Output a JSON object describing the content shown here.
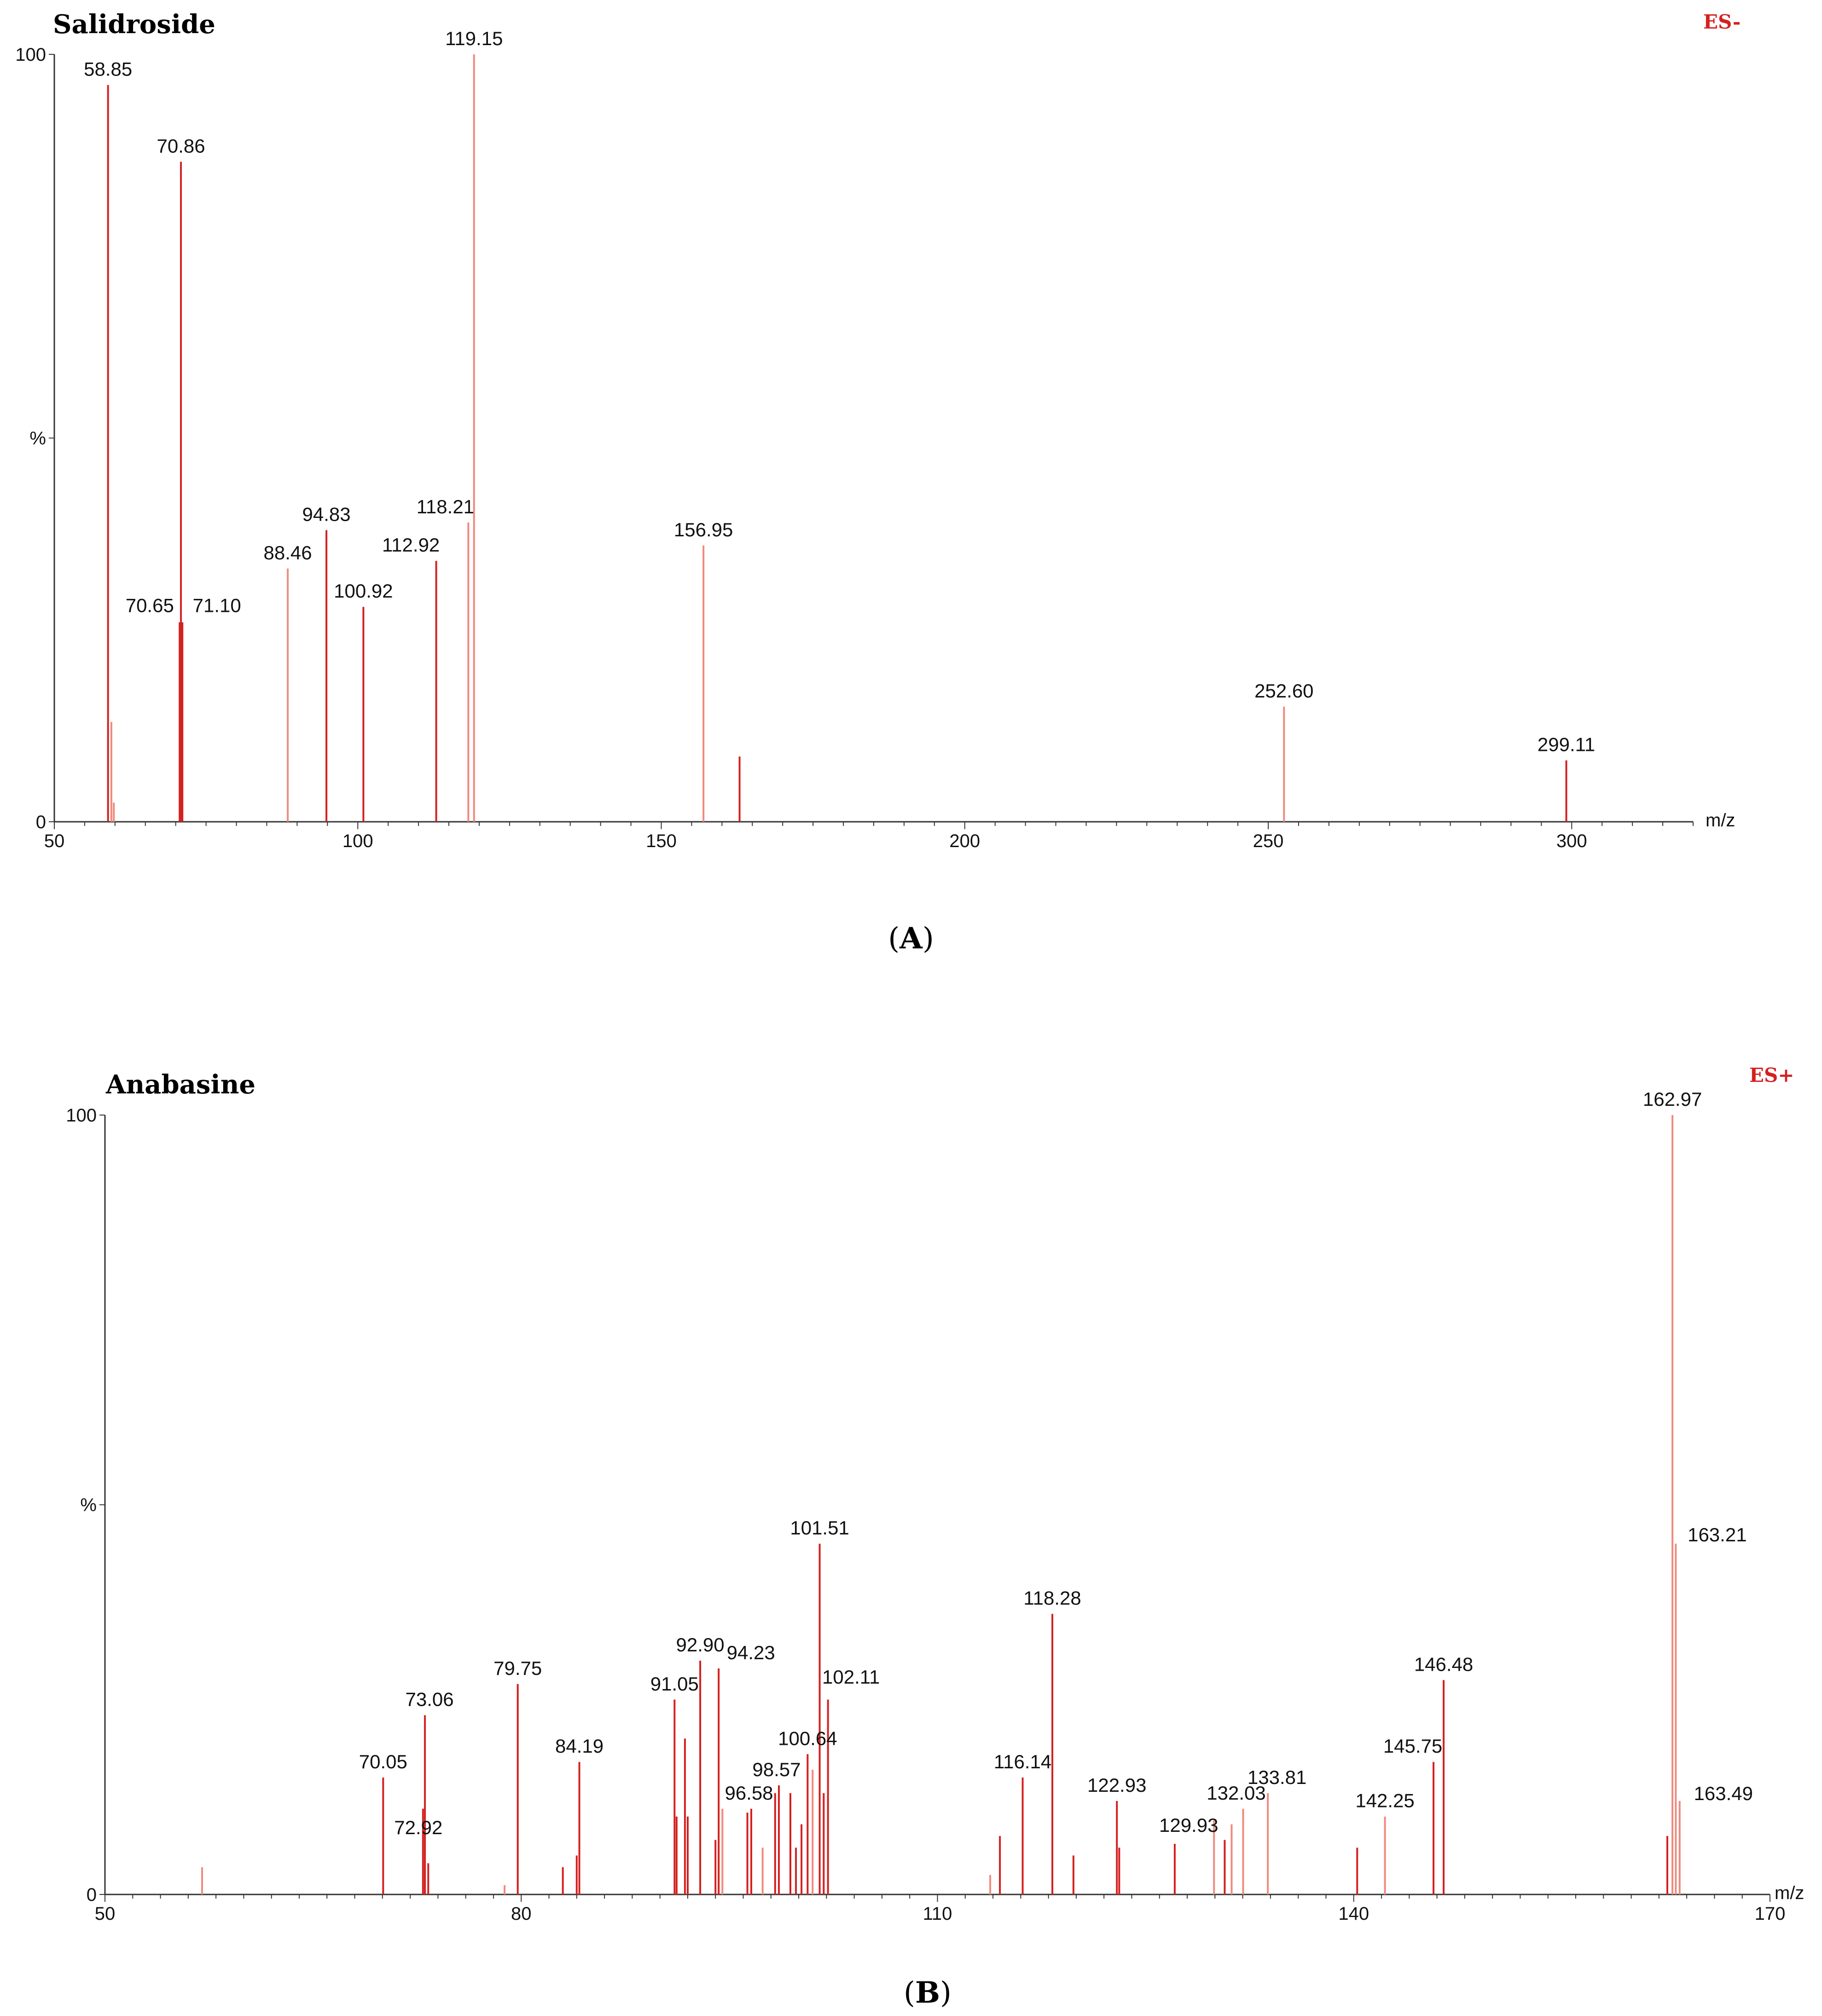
{
  "colors": {
    "strong": "#d42020",
    "light": "#f08a7e",
    "axis": "#333333",
    "ion_mode": "#d42020"
  },
  "chart_data": [
    {
      "type": "bar",
      "title": "Salidroside",
      "ion_mode": "ES-",
      "xlabel": "m/z",
      "ylabel": "%",
      "panel_label": "A",
      "xlim": [
        50,
        320
      ],
      "ylim": [
        0,
        100
      ],
      "xticks": [
        50,
        100,
        150,
        200,
        250,
        300
      ],
      "yticks": [
        {
          "value": 100,
          "label": "100"
        },
        {
          "value": 50,
          "label": "%"
        },
        {
          "value": 0,
          "label": "0"
        }
      ],
      "peaks": [
        {
          "mz": 58.85,
          "intensity": 96,
          "label": "58.85",
          "tone": "strong"
        },
        {
          "mz": 59.4,
          "intensity": 13,
          "label": null,
          "tone": "light"
        },
        {
          "mz": 59.8,
          "intensity": 2.5,
          "label": null,
          "tone": "light"
        },
        {
          "mz": 70.65,
          "intensity": 26,
          "label": "70.65",
          "tone": "strong"
        },
        {
          "mz": 70.86,
          "intensity": 86,
          "label": "70.86",
          "tone": "strong"
        },
        {
          "mz": 71.1,
          "intensity": 26,
          "label": "71.10",
          "tone": "strong"
        },
        {
          "mz": 88.46,
          "intensity": 33,
          "label": "88.46",
          "tone": "light"
        },
        {
          "mz": 94.83,
          "intensity": 38,
          "label": "94.83",
          "tone": "strong"
        },
        {
          "mz": 100.92,
          "intensity": 28,
          "label": "100.92",
          "tone": "strong"
        },
        {
          "mz": 112.92,
          "intensity": 34,
          "label": "112.92",
          "tone": "strong"
        },
        {
          "mz": 118.21,
          "intensity": 39,
          "label": "118.21",
          "tone": "light"
        },
        {
          "mz": 119.15,
          "intensity": 100,
          "label": "119.15",
          "tone": "light"
        },
        {
          "mz": 156.95,
          "intensity": 36,
          "label": "156.95",
          "tone": "light"
        },
        {
          "mz": 162.9,
          "intensity": 8.5,
          "label": null,
          "tone": "strong"
        },
        {
          "mz": 252.6,
          "intensity": 15,
          "label": "252.60",
          "tone": "light"
        },
        {
          "mz": 299.11,
          "intensity": 8,
          "label": "299.11",
          "tone": "strong"
        }
      ]
    },
    {
      "type": "bar",
      "title": "Anabasine",
      "ion_mode": "ES+",
      "xlabel": "m/z",
      "ylabel": "%",
      "panel_label": "B",
      "xlim": [
        50,
        170
      ],
      "ylim": [
        0,
        100
      ],
      "xticks": [
        50,
        80,
        110,
        140,
        170
      ],
      "yticks": [
        {
          "value": 100,
          "label": "100"
        },
        {
          "value": 50,
          "label": "%"
        },
        {
          "value": 0,
          "label": "0"
        }
      ],
      "peaks": [
        {
          "mz": 57.0,
          "intensity": 3.5,
          "label": null,
          "tone": "light"
        },
        {
          "mz": 70.05,
          "intensity": 15,
          "label": "70.05",
          "tone": "strong"
        },
        {
          "mz": 72.92,
          "intensity": 11,
          "label": "72.92",
          "tone": "strong"
        },
        {
          "mz": 73.06,
          "intensity": 23,
          "label": "73.06",
          "tone": "strong"
        },
        {
          "mz": 73.3,
          "intensity": 4,
          "label": null,
          "tone": "strong"
        },
        {
          "mz": 78.8,
          "intensity": 1.2,
          "label": null,
          "tone": "light"
        },
        {
          "mz": 79.75,
          "intensity": 27,
          "label": "79.75",
          "tone": "strong"
        },
        {
          "mz": 83.0,
          "intensity": 3.5,
          "label": null,
          "tone": "strong"
        },
        {
          "mz": 84.0,
          "intensity": 5,
          "label": null,
          "tone": "strong"
        },
        {
          "mz": 84.19,
          "intensity": 17,
          "label": "84.19",
          "tone": "strong"
        },
        {
          "mz": 91.05,
          "intensity": 25,
          "label": "91.05",
          "tone": "strong"
        },
        {
          "mz": 91.2,
          "intensity": 10,
          "label": null,
          "tone": "strong"
        },
        {
          "mz": 91.8,
          "intensity": 20,
          "label": null,
          "tone": "strong"
        },
        {
          "mz": 92.0,
          "intensity": 10,
          "label": null,
          "tone": "strong"
        },
        {
          "mz": 92.9,
          "intensity": 30,
          "label": "92.90",
          "tone": "strong"
        },
        {
          "mz": 94.0,
          "intensity": 7,
          "label": null,
          "tone": "strong"
        },
        {
          "mz": 94.23,
          "intensity": 29,
          "label": "94.23",
          "tone": "strong"
        },
        {
          "mz": 94.5,
          "intensity": 11,
          "label": null,
          "tone": "light"
        },
        {
          "mz": 96.3,
          "intensity": 10.5,
          "label": null,
          "tone": "strong"
        },
        {
          "mz": 96.58,
          "intensity": 11,
          "label": "96.58",
          "tone": "strong"
        },
        {
          "mz": 97.4,
          "intensity": 6,
          "label": null,
          "tone": "light"
        },
        {
          "mz": 98.3,
          "intensity": 13,
          "label": null,
          "tone": "strong"
        },
        {
          "mz": 98.57,
          "intensity": 14,
          "label": "98.57",
          "tone": "strong"
        },
        {
          "mz": 99.4,
          "intensity": 13,
          "label": null,
          "tone": "strong"
        },
        {
          "mz": 99.8,
          "intensity": 6,
          "label": null,
          "tone": "strong"
        },
        {
          "mz": 100.2,
          "intensity": 9,
          "label": null,
          "tone": "strong"
        },
        {
          "mz": 100.64,
          "intensity": 18,
          "label": "100.64",
          "tone": "strong"
        },
        {
          "mz": 101.0,
          "intensity": 16,
          "label": null,
          "tone": "light"
        },
        {
          "mz": 101.51,
          "intensity": 45,
          "label": "101.51",
          "tone": "strong"
        },
        {
          "mz": 101.8,
          "intensity": 13,
          "label": null,
          "tone": "strong"
        },
        {
          "mz": 102.11,
          "intensity": 25,
          "label": "102.11",
          "tone": "strong"
        },
        {
          "mz": 113.8,
          "intensity": 2.5,
          "label": null,
          "tone": "light"
        },
        {
          "mz": 114.5,
          "intensity": 7.5,
          "label": null,
          "tone": "strong"
        },
        {
          "mz": 116.14,
          "intensity": 15,
          "label": "116.14",
          "tone": "strong"
        },
        {
          "mz": 118.28,
          "intensity": 36,
          "label": "118.28",
          "tone": "strong"
        },
        {
          "mz": 119.8,
          "intensity": 5,
          "label": null,
          "tone": "strong"
        },
        {
          "mz": 122.93,
          "intensity": 12,
          "label": "122.93",
          "tone": "strong"
        },
        {
          "mz": 123.1,
          "intensity": 6,
          "label": null,
          "tone": "strong"
        },
        {
          "mz": 127.1,
          "intensity": 6.5,
          "label": null,
          "tone": "strong"
        },
        {
          "mz": 129.93,
          "intensity": 9.5,
          "label": "129.93",
          "tone": "light"
        },
        {
          "mz": 130.7,
          "intensity": 7,
          "label": null,
          "tone": "strong"
        },
        {
          "mz": 131.2,
          "intensity": 9,
          "label": null,
          "tone": "light"
        },
        {
          "mz": 132.03,
          "intensity": 11,
          "label": "132.03",
          "tone": "light"
        },
        {
          "mz": 133.81,
          "intensity": 13,
          "label": "133.81",
          "tone": "light"
        },
        {
          "mz": 140.25,
          "intensity": 6,
          "label": null,
          "tone": "strong"
        },
        {
          "mz": 142.25,
          "intensity": 10,
          "label": "142.25",
          "tone": "light"
        },
        {
          "mz": 145.75,
          "intensity": 17,
          "label": "145.75",
          "tone": "strong"
        },
        {
          "mz": 146.48,
          "intensity": 27.5,
          "label": "146.48",
          "tone": "strong"
        },
        {
          "mz": 162.6,
          "intensity": 7.5,
          "label": null,
          "tone": "strong"
        },
        {
          "mz": 162.97,
          "intensity": 100,
          "label": "162.97",
          "tone": "light"
        },
        {
          "mz": 163.21,
          "intensity": 45,
          "label": "163.21",
          "tone": "light"
        },
        {
          "mz": 163.49,
          "intensity": 12,
          "label": "163.49",
          "tone": "light"
        }
      ]
    }
  ]
}
